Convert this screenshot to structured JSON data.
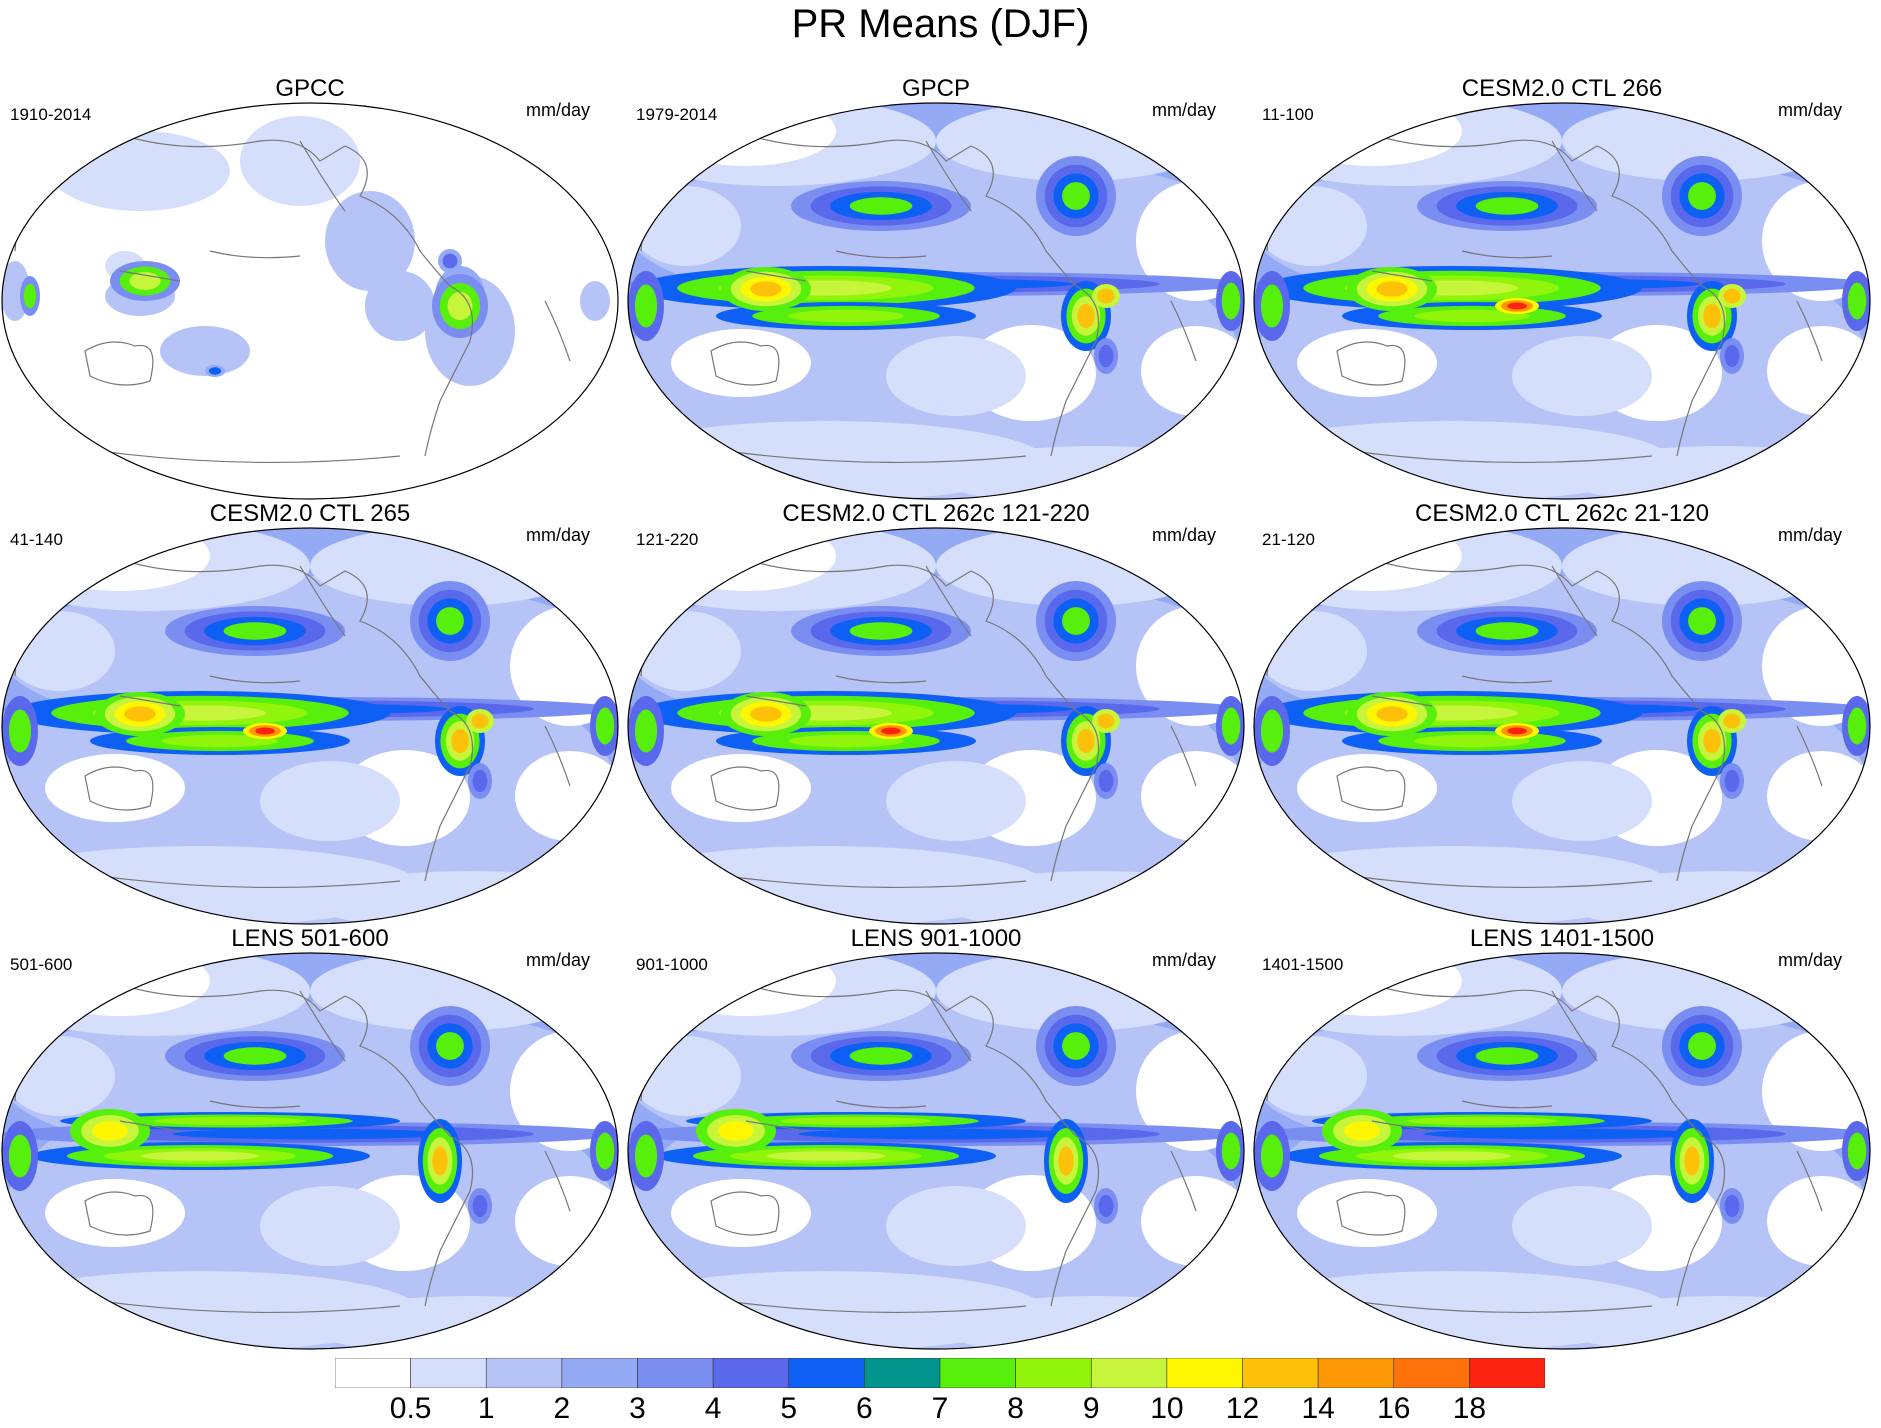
{
  "title": "PR Means (DJF)",
  "units": "mm/day",
  "panels": [
    {
      "title": "GPCC",
      "period": "1910-2014",
      "kind": "land"
    },
    {
      "title": "GPCP",
      "period": "1979-2014",
      "kind": "obs"
    },
    {
      "title": "CESM2.0 CTL 266",
      "period": "11-100",
      "kind": "cesm"
    },
    {
      "title": "CESM2.0 CTL 265",
      "period": "41-140",
      "kind": "cesm"
    },
    {
      "title": "CESM2.0 CTL 262c 121-220",
      "period": "121-220",
      "kind": "cesm"
    },
    {
      "title": "CESM2.0 CTL 262c 21-120",
      "period": "21-120",
      "kind": "cesm"
    },
    {
      "title": "LENS 501-600",
      "period": "501-600",
      "kind": "lens"
    },
    {
      "title": "LENS 901-1000",
      "period": "901-1000",
      "kind": "lens"
    },
    {
      "title": "LENS 1401-1500",
      "period": "1401-1500",
      "kind": "lens"
    }
  ],
  "colorbar": {
    "colors": [
      "#ffffff",
      "#d5defa",
      "#b5c3f7",
      "#95aaf5",
      "#7a8ef2",
      "#5a68ec",
      "#0e60f4",
      "#01948c",
      "#57f00d",
      "#90f50a",
      "#c6f53b",
      "#fef701",
      "#fec10a",
      "#fd9805",
      "#fd720a",
      "#fc2410"
    ],
    "labels": [
      "0.5",
      "1",
      "2",
      "3",
      "4",
      "5",
      "6",
      "7",
      "8",
      "9",
      "10",
      "12",
      "14",
      "16",
      "18"
    ]
  }
}
